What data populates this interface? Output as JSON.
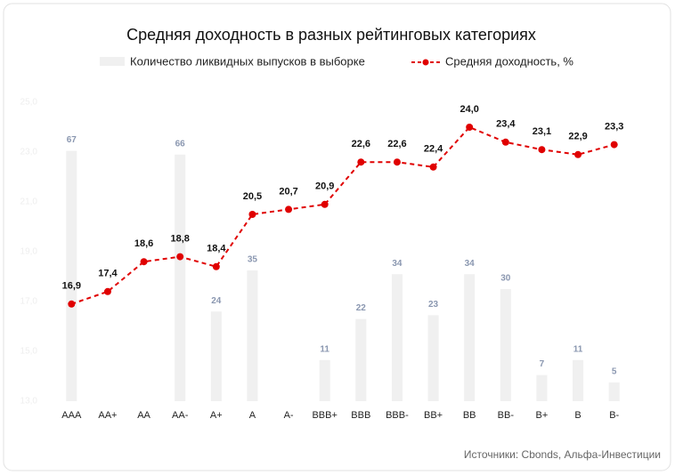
{
  "chart_data": {
    "type": "bar_line",
    "title": "Средняя доходность в разных рейтинговых категориях",
    "categories": [
      "AAA",
      "AA+",
      "AA",
      "AA-",
      "A+",
      "A",
      "A-",
      "BBB+",
      "BBB",
      "BBB-",
      "BB+",
      "BB",
      "BB-",
      "B+",
      "B",
      "B-"
    ],
    "series": [
      {
        "name": "Количество ликвидных выпусков в выборке",
        "type": "bar",
        "axis": "y2",
        "color": "#f0f0f0",
        "values": [
          67,
          null,
          null,
          66,
          24,
          35,
          null,
          11,
          22,
          34,
          23,
          34,
          30,
          7,
          11,
          5
        ]
      },
      {
        "name": "Средняя доходность, %",
        "type": "line",
        "color": "#e00000",
        "values": [
          16.9,
          17.4,
          18.6,
          18.8,
          18.4,
          20.5,
          20.7,
          20.9,
          22.6,
          22.6,
          22.4,
          24.0,
          23.4,
          23.1,
          22.9,
          23.3
        ],
        "value_labels": [
          "16,9",
          "17,4",
          "18,6",
          "18,8",
          "18,4",
          "20,5",
          "20,7",
          "20,9",
          "22,6",
          "22,6",
          "22,4",
          "24,0",
          "23,4",
          "23,1",
          "22,9",
          "23,3"
        ]
      }
    ],
    "ylim": [
      13,
      25
    ],
    "yticks": [
      {
        "value": 13,
        "label": "13,0"
      },
      {
        "value": 15,
        "label": "15,0"
      },
      {
        "value": 17,
        "label": "17,0"
      },
      {
        "value": 19,
        "label": "19,0"
      },
      {
        "value": 21,
        "label": "21,0"
      },
      {
        "value": 23,
        "label": "23,0"
      },
      {
        "value": 25,
        "label": "25,0"
      }
    ],
    "y2lim": [
      0,
      80
    ],
    "source": "Источники: Cbonds, Альфа-Инвестиции"
  }
}
